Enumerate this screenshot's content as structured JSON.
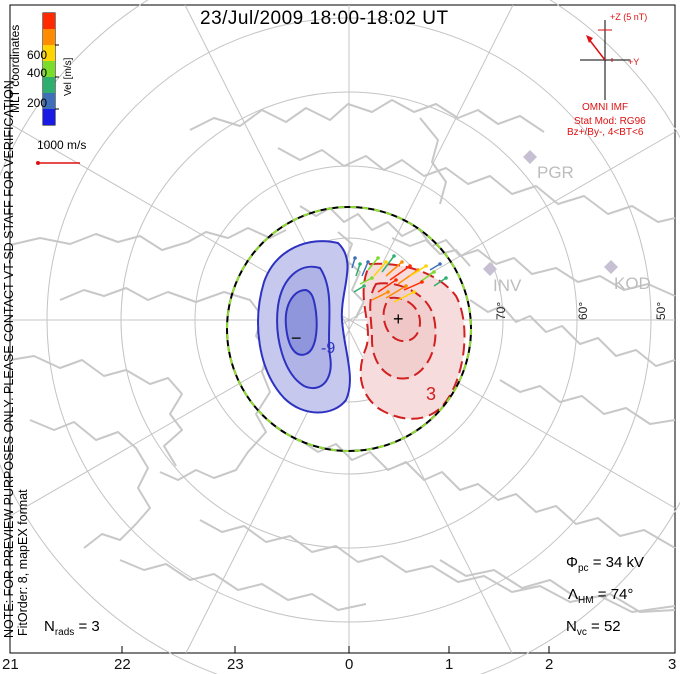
{
  "title": "23/Jul/2009 18:00-18:02 UT",
  "colorbar": {
    "label": "Vel [m/s]",
    "ticks": [
      "600",
      "400",
      "200"
    ],
    "colors": [
      "#ff2a00",
      "#ff8c00",
      "#ffd400",
      "#7bdc2a",
      "#2fae6f",
      "#3f6fb7",
      "#1a1ae6"
    ],
    "coordinates_label": "MLT coordinates"
  },
  "vector_scale": "1000 m/s",
  "imf": {
    "z_label": "+Z (5 nT)",
    "y_label": "+Y",
    "source": "OMNI IMF",
    "model_line1": "Stat Mod: RG96",
    "model_line2": "Bz+/By-, 4<BT<6"
  },
  "radars": [
    "PGR",
    "INV",
    "KOD"
  ],
  "latitude_labels": [
    "70°",
    "60°",
    "50°"
  ],
  "contours": {
    "negative_label": "-9",
    "positive_label": "3",
    "min_marker": "−",
    "max_marker": "+"
  },
  "note": "NOTE: FOR PREVIEW PURPOSES ONLY. PLEASE CONTACT VT-SD STAFF FOR VERIFICATION.",
  "fit_order": "FitOrder: 8, mapEX format",
  "stats": {
    "phi_pc": "34 kV",
    "lambda_hm": "74°",
    "n_vc": "52",
    "n_rads": "3"
  },
  "mlt_labels": [
    "21",
    "22",
    "23",
    "0",
    "1",
    "2",
    "3"
  ]
}
